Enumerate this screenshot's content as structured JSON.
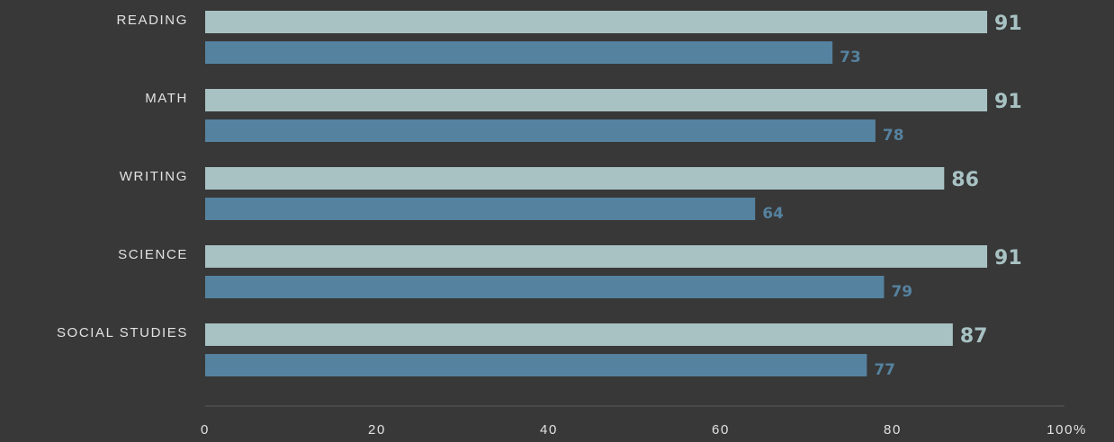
{
  "chart_data": {
    "type": "bar",
    "orientation": "horizontal",
    "categories": [
      "READING",
      "MATH",
      "WRITING",
      "SCIENCE",
      "SOCIAL STUDIES"
    ],
    "series": [
      {
        "values": [
          91,
          91,
          86,
          91,
          87
        ],
        "color": "#a8c2c3"
      },
      {
        "values": [
          73,
          78,
          64,
          79,
          77
        ],
        "color": "#55829f"
      }
    ],
    "x_ticks": [
      "0",
      "20",
      "40",
      "60",
      "80",
      "100%"
    ],
    "xlim": [
      0,
      100
    ],
    "grid": false,
    "legend": "none",
    "title": "",
    "xlabel": "",
    "ylabel": ""
  },
  "colors": {
    "background": "#383838",
    "axis": "#5a5a5a",
    "text": "#e2e2e2"
  }
}
